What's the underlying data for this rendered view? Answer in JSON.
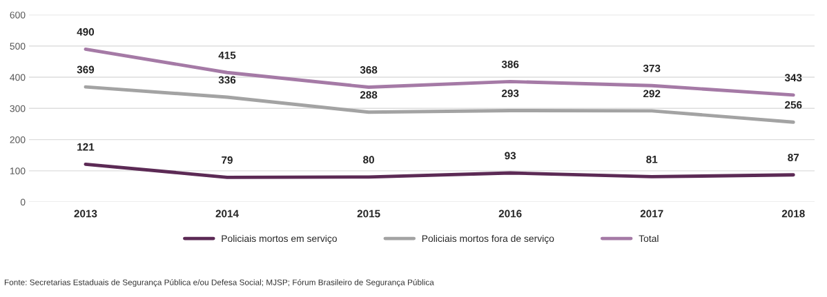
{
  "chart_data": {
    "type": "line",
    "categories": [
      "2013",
      "2014",
      "2015",
      "2016",
      "2017",
      "2018"
    ],
    "series": [
      {
        "name": "Policiais mortos em serviço",
        "color": "#5c2a55",
        "values": [
          121,
          79,
          80,
          93,
          81,
          87
        ]
      },
      {
        "name": "Policiais mortos fora de serviço",
        "color": "#a3a3a3",
        "values": [
          369,
          336,
          288,
          293,
          292,
          256
        ]
      },
      {
        "name": "Total",
        "color": "#a57aa6",
        "values": [
          490,
          415,
          368,
          386,
          373,
          343
        ]
      }
    ],
    "ylim": [
      0,
      600
    ],
    "yticks": [
      0,
      100,
      200,
      300,
      400,
      500,
      600
    ],
    "grid": "y",
    "legend": "bottom",
    "data_labels": true,
    "marker": "none",
    "line_style": "solid",
    "annotations": [
      "Fonte: Secretarias Estaduais de Segurança Pública e/ou Defesa Social; MJSP; Fórum Brasileiro de Segurança Pública"
    ]
  }
}
